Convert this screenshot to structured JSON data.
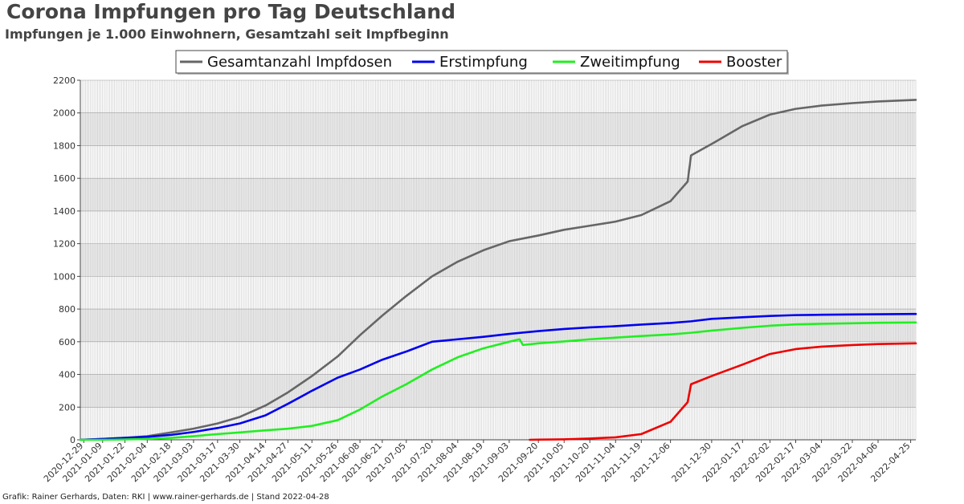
{
  "title": "Corona Impfungen pro Tag Deutschland",
  "subtitle": "Impfungen je 1.000 Einwohnern, Gesamtzahl seit Impfbeginn",
  "footer": "Grafik: Rainer Gerhards, Daten: RKI | www.rainer-gerhards.de | Stand 2022-04-28",
  "chart_data": {
    "type": "line",
    "ylim": [
      0,
      2200
    ],
    "yticks": [
      "0",
      "200",
      "400",
      "600",
      "800",
      "1000",
      "1200",
      "1400",
      "1600",
      "1800",
      "2000",
      "2200"
    ],
    "x_start": "2020-12-27",
    "x_end": "2022-04-28",
    "xticks": [
      "2020-12-29",
      "2021-01-09",
      "2021-01-22",
      "2021-02-04",
      "2021-02-18",
      "2021-03-03",
      "2021-03-17",
      "2021-03-30",
      "2021-04-14",
      "2021-04-27",
      "2021-05-11",
      "2021-05-26",
      "2021-06-08",
      "2021-06-21",
      "2021-07-05",
      "2021-07-20",
      "2021-08-04",
      "2021-08-19",
      "2021-09-03",
      "2021-09-20",
      "2021-10-05",
      "2021-10-20",
      "2021-11-04",
      "2021-11-19",
      "2021-12-06",
      "2021-12-30",
      "2022-01-17",
      "2022-02-02",
      "2022-02-17",
      "2022-03-04",
      "2022-03-22",
      "2022-04-06",
      "2022-04-25"
    ],
    "grid": true,
    "legend_position": "top-center",
    "series": [
      {
        "name": "Gesamtanzahl Impfdosen",
        "color": "#666666",
        "x": [
          "2020-12-27",
          "2021-01-09",
          "2021-01-22",
          "2021-02-04",
          "2021-02-18",
          "2021-03-03",
          "2021-03-17",
          "2021-03-30",
          "2021-04-14",
          "2021-04-27",
          "2021-05-11",
          "2021-05-26",
          "2021-06-08",
          "2021-06-21",
          "2021-07-05",
          "2021-07-20",
          "2021-08-04",
          "2021-08-19",
          "2021-09-03",
          "2021-09-20",
          "2021-10-05",
          "2021-10-20",
          "2021-11-04",
          "2021-11-19",
          "2021-12-06",
          "2021-12-16",
          "2021-12-18",
          "2021-12-30",
          "2022-01-17",
          "2022-02-02",
          "2022-02-17",
          "2022-03-04",
          "2022-03-22",
          "2022-04-06",
          "2022-04-28"
        ],
        "y": [
          0,
          5,
          12,
          22,
          45,
          68,
          100,
          140,
          210,
          290,
          390,
          510,
          640,
          760,
          880,
          1000,
          1090,
          1160,
          1215,
          1250,
          1285,
          1310,
          1335,
          1375,
          1460,
          1580,
          1740,
          1810,
          1920,
          1990,
          2025,
          2045,
          2060,
          2070,
          2080
        ]
      },
      {
        "name": "Erstimpfung",
        "color": "#0000ee",
        "x": [
          "2020-12-27",
          "2021-01-09",
          "2021-01-22",
          "2021-02-04",
          "2021-02-18",
          "2021-03-03",
          "2021-03-17",
          "2021-03-30",
          "2021-04-14",
          "2021-04-27",
          "2021-05-11",
          "2021-05-26",
          "2021-06-08",
          "2021-06-21",
          "2021-07-05",
          "2021-07-20",
          "2021-08-04",
          "2021-08-19",
          "2021-09-03",
          "2021-09-20",
          "2021-10-05",
          "2021-10-20",
          "2021-11-04",
          "2021-11-19",
          "2021-12-06",
          "2021-12-18",
          "2021-12-30",
          "2022-01-17",
          "2022-02-02",
          "2022-02-17",
          "2022-03-04",
          "2022-03-22",
          "2022-04-06",
          "2022-04-28"
        ],
        "y": [
          0,
          5,
          12,
          18,
          30,
          48,
          72,
          100,
          150,
          220,
          300,
          380,
          430,
          490,
          540,
          600,
          615,
          630,
          648,
          665,
          678,
          688,
          695,
          705,
          715,
          725,
          740,
          750,
          758,
          763,
          765,
          767,
          768,
          770
        ]
      },
      {
        "name": "Zweitimpfung",
        "color": "#22ee22",
        "x": [
          "2020-12-27",
          "2021-01-09",
          "2021-01-22",
          "2021-02-04",
          "2021-02-18",
          "2021-03-03",
          "2021-03-17",
          "2021-03-30",
          "2021-04-14",
          "2021-04-27",
          "2021-05-11",
          "2021-05-26",
          "2021-06-08",
          "2021-06-21",
          "2021-07-05",
          "2021-07-20",
          "2021-08-04",
          "2021-08-19",
          "2021-09-03",
          "2021-09-09",
          "2021-09-11",
          "2021-09-20",
          "2021-10-05",
          "2021-10-20",
          "2021-11-04",
          "2021-11-19",
          "2021-12-06",
          "2021-12-18",
          "2021-12-30",
          "2022-01-17",
          "2022-02-02",
          "2022-02-17",
          "2022-03-04",
          "2022-03-22",
          "2022-04-06",
          "2022-04-28"
        ],
        "y": [
          0,
          0,
          2,
          5,
          12,
          22,
          35,
          45,
          58,
          68,
          85,
          120,
          185,
          265,
          340,
          430,
          505,
          560,
          600,
          615,
          580,
          590,
          602,
          615,
          625,
          635,
          645,
          655,
          668,
          685,
          698,
          706,
          710,
          713,
          716,
          718
        ]
      },
      {
        "name": "Booster",
        "color": "#ee0000",
        "x": [
          "2021-09-15",
          "2021-09-20",
          "2021-10-05",
          "2021-10-20",
          "2021-11-04",
          "2021-11-19",
          "2021-12-06",
          "2021-12-16",
          "2021-12-18",
          "2021-12-30",
          "2022-01-17",
          "2022-02-02",
          "2022-02-17",
          "2022-03-04",
          "2022-03-22",
          "2022-04-06",
          "2022-04-28"
        ],
        "y": [
          0,
          1,
          3,
          8,
          15,
          35,
          110,
          230,
          340,
          390,
          460,
          525,
          555,
          570,
          580,
          586,
          590
        ]
      }
    ]
  }
}
